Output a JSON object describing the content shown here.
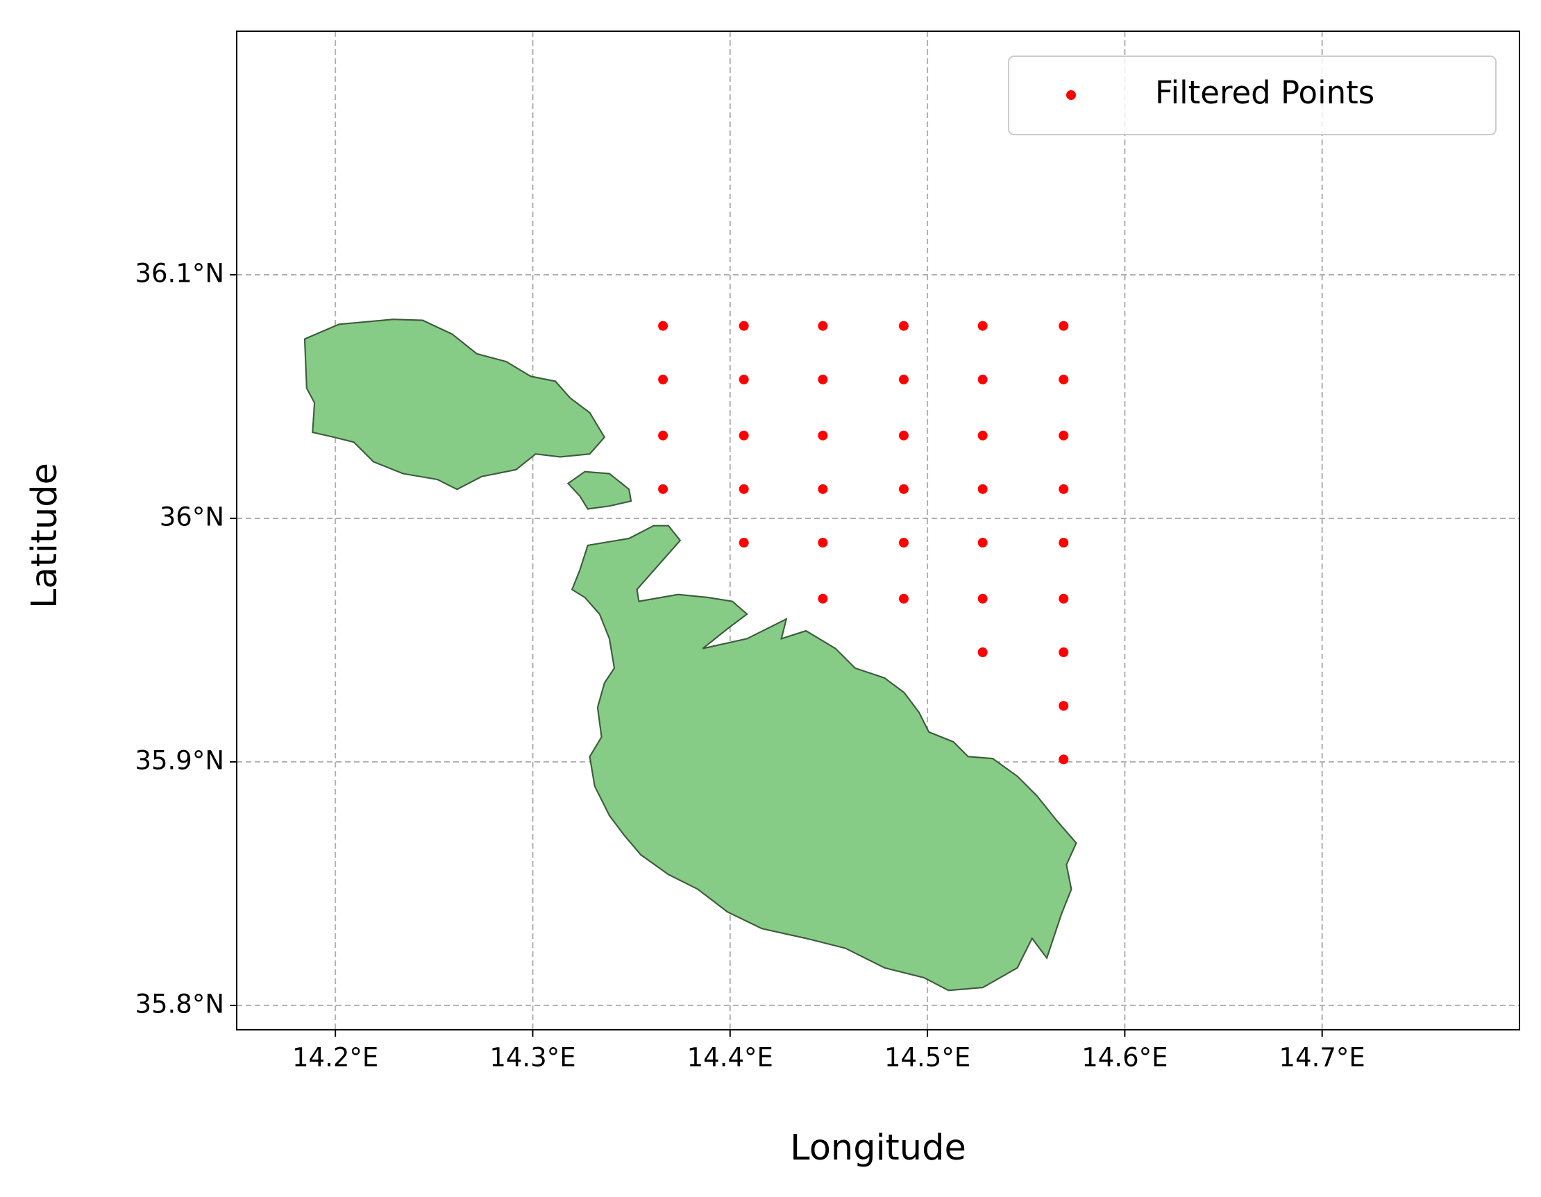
{
  "chart_data": {
    "type": "scatter",
    "xlabel": "Longitude",
    "ylabel": "Latitude",
    "xlim": [
      14.15,
      14.8
    ],
    "ylim": [
      35.79,
      36.2
    ],
    "xticks": [
      {
        "value": 14.2,
        "label": "14.2°E"
      },
      {
        "value": 14.3,
        "label": "14.3°E"
      },
      {
        "value": 14.4,
        "label": "14.4°E"
      },
      {
        "value": 14.5,
        "label": "14.5°E"
      },
      {
        "value": 14.6,
        "label": "14.6°E"
      },
      {
        "value": 14.7,
        "label": "14.7°E"
      }
    ],
    "yticks": [
      {
        "value": 35.8,
        "label": "35.8°N"
      },
      {
        "value": 35.9,
        "label": "35.9°N"
      },
      {
        "value": 36.0,
        "label": "36°N"
      },
      {
        "value": 36.1,
        "label": "36.1°N"
      }
    ],
    "grid": true,
    "legend": "upper right",
    "series": [
      {
        "name": "Filtered Points",
        "color": "#ff0000",
        "x": [
          14.366,
          14.366,
          14.366,
          14.366,
          14.407,
          14.407,
          14.407,
          14.407,
          14.407,
          14.447,
          14.447,
          14.447,
          14.447,
          14.447,
          14.447,
          14.488,
          14.488,
          14.488,
          14.488,
          14.488,
          14.488,
          14.528,
          14.528,
          14.528,
          14.528,
          14.528,
          14.528,
          14.528,
          14.569,
          14.569,
          14.569,
          14.569,
          14.569,
          14.569,
          14.569,
          14.569,
          14.569
        ],
        "values": [
          36.079,
          36.057,
          36.034,
          36.012,
          36.079,
          36.057,
          36.034,
          36.012,
          35.99,
          36.079,
          36.057,
          36.034,
          36.012,
          35.99,
          35.967,
          36.079,
          36.057,
          36.034,
          36.012,
          35.99,
          35.967,
          36.079,
          36.057,
          36.034,
          36.012,
          35.99,
          35.967,
          35.945,
          36.079,
          36.057,
          36.034,
          36.012,
          35.99,
          35.967,
          35.945,
          35.923,
          35.901
        ]
      }
    ]
  }
}
